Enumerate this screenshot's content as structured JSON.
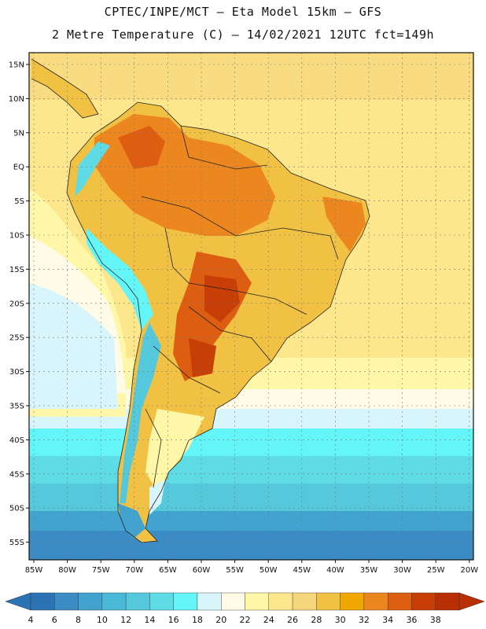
{
  "header": {
    "line1": "CPTEC/INPE/MCT –  Eta Model 15km – GFS",
    "line2": "2 Metre Temperature (C) – 14/02/2021 12UTC fct=149h"
  },
  "map": {
    "longitude_labels": [
      "85W",
      "80W",
      "75W",
      "70W",
      "65W",
      "60W",
      "55W",
      "50W",
      "45W",
      "40W",
      "35W",
      "30W",
      "25W",
      "20W"
    ],
    "latitude_labels": [
      "15N",
      "10N",
      "5N",
      "EQ",
      "5S",
      "10S",
      "15S",
      "20S",
      "25S",
      "30S",
      "35S",
      "40S",
      "45S",
      "50S",
      "55S"
    ]
  },
  "legend": {
    "labels": [
      "4",
      "6",
      "8",
      "10",
      "12",
      "14",
      "16",
      "18",
      "20",
      "22",
      "24",
      "26",
      "28",
      "30",
      "32",
      "34",
      "36",
      "38"
    ],
    "colors": [
      "#2c73b3",
      "#3b8cc5",
      "#43a3cf",
      "#4ab9d7",
      "#55c9db",
      "#5fdbe6",
      "#64f5f8",
      "#d8f5fb",
      "#fffbe6",
      "#fff7a8",
      "#fce78c",
      "#f6d67c",
      "#f1c144",
      "#f0a800",
      "#ec8720",
      "#dd5e10",
      "#c73e06",
      "#b92f05"
    ]
  }
}
